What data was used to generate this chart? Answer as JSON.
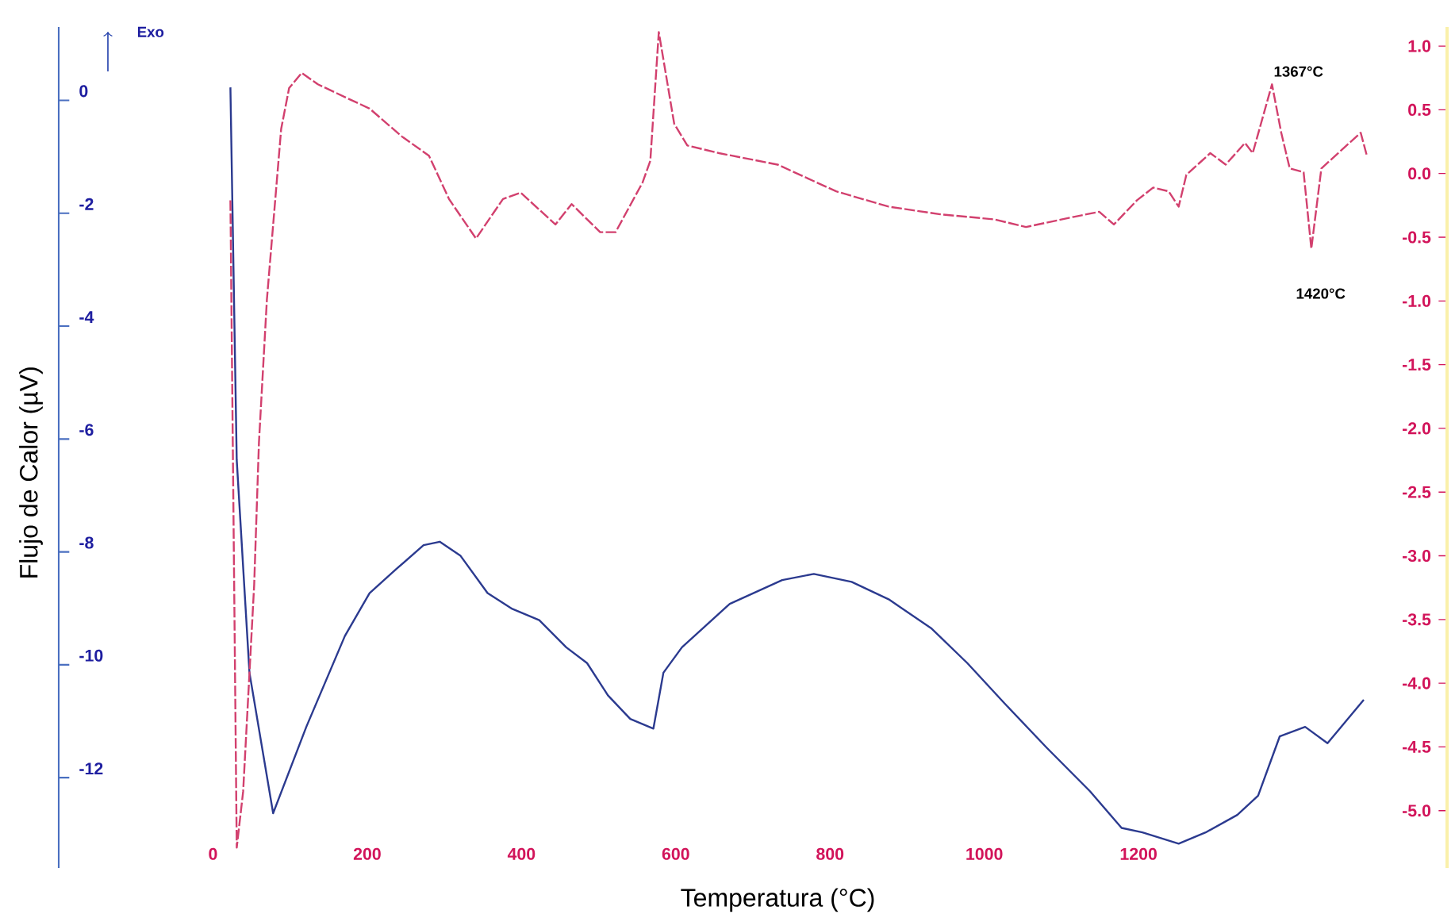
{
  "chart_data": {
    "type": "line",
    "xlabel": "Temperatura (°C)",
    "ylabel": "Flujo de Calor (µV)",
    "xlim": [
      -200,
      1600
    ],
    "xticks": [
      0,
      200,
      400,
      600,
      800,
      1000,
      1200
    ],
    "ylim": [
      -13.6,
      1.3
    ],
    "yticks": [
      0,
      -2,
      -4,
      -6,
      -8,
      -10,
      -12
    ],
    "y2lim": [
      -5.45,
      1.15
    ],
    "y2ticks": [
      {
        "value": 1,
        "label": "1.0"
      },
      {
        "value": 0.5,
        "label": "0.5"
      },
      {
        "value": 0,
        "label": "0.0"
      },
      {
        "value": -0.5,
        "label": "-0.5"
      },
      {
        "value": -1,
        "label": "-1.0"
      },
      {
        "value": -1.5,
        "label": "-1.5"
      },
      {
        "value": -2,
        "label": "-2.0"
      },
      {
        "value": -2.5,
        "label": "-2.5"
      },
      {
        "value": -3,
        "label": "-3.0"
      },
      {
        "value": -3.5,
        "label": "-3.5"
      },
      {
        "value": -4,
        "label": "-4.0"
      },
      {
        "value": -4.5,
        "label": "-4.5"
      },
      {
        "value": -5,
        "label": "-5.0"
      }
    ],
    "annotations": [
      "Exo",
      "1367°C",
      "1420°C"
    ],
    "series": [
      {
        "color": "#2b3a8f",
        "axis": "y",
        "line_style": "solid",
        "x": [
          22.6,
          30.8,
          47.3,
          78,
          121,
          171,
          203,
          238,
          273,
          294,
          321,
          356,
          388,
          423,
          458,
          485,
          512,
          541,
          571,
          584,
          608,
          670,
          738,
          779,
          828,
          876,
          931,
          978,
          1026,
          1081,
          1137,
          1178,
          1205,
          1252,
          1287,
          1328,
          1355,
          1383,
          1416,
          1445,
          1492
        ],
        "values": [
          0.23,
          -6.37,
          -10.14,
          -12.63,
          -11.1,
          -9.49,
          -8.73,
          -8.3,
          -7.88,
          -7.82,
          -8.07,
          -8.73,
          -9.01,
          -9.21,
          -9.69,
          -9.97,
          -10.54,
          -10.96,
          -11.13,
          -10.14,
          -9.69,
          -8.92,
          -8.5,
          -8.39,
          -8.53,
          -8.84,
          -9.35,
          -9.97,
          -10.68,
          -11.47,
          -12.24,
          -12.89,
          -12.97,
          -13.17,
          -12.97,
          -12.66,
          -12.32,
          -11.27,
          -11.1,
          -11.39,
          -10.62
        ]
      },
      {
        "color": "#d2406e",
        "axis": "y2",
        "line_style": "dashed",
        "x": [
          22.6,
          30.8,
          39.1,
          53.4,
          59.6,
          69.9,
          88.4,
          98.7,
          115,
          136,
          171,
          203,
          245,
          280,
          306,
          341,
          376,
          399,
          444,
          465,
          502,
          522,
          557,
          567,
          578,
          598,
          615,
          656,
          732,
          808,
          876,
          943,
          1013,
          1054,
          1116,
          1149,
          1168,
          1198,
          1219,
          1239,
          1252,
          1262,
          1293,
          1313,
          1338,
          1348,
          1373,
          1385,
          1396,
          1414,
          1424,
          1437,
          1466,
          1488,
          1496
        ],
        "values": [
          -0.21,
          -5.29,
          -4.85,
          -3.23,
          -2.11,
          -0.99,
          0.35,
          0.67,
          0.79,
          0.7,
          0.6,
          0.51,
          0.29,
          0.14,
          -0.2,
          -0.51,
          -0.2,
          -0.15,
          -0.4,
          -0.24,
          -0.46,
          -0.46,
          -0.07,
          0.1,
          1.11,
          0.39,
          0.22,
          0.16,
          0.07,
          -0.14,
          -0.26,
          -0.32,
          -0.36,
          -0.42,
          -0.34,
          -0.3,
          -0.4,
          -0.21,
          -0.11,
          -0.14,
          -0.26,
          -0.01,
          0.16,
          0.07,
          0.24,
          0.16,
          0.7,
          0.32,
          0.04,
          0.01,
          -0.59,
          0.04,
          0.2,
          0.32,
          0.14
        ]
      }
    ]
  }
}
